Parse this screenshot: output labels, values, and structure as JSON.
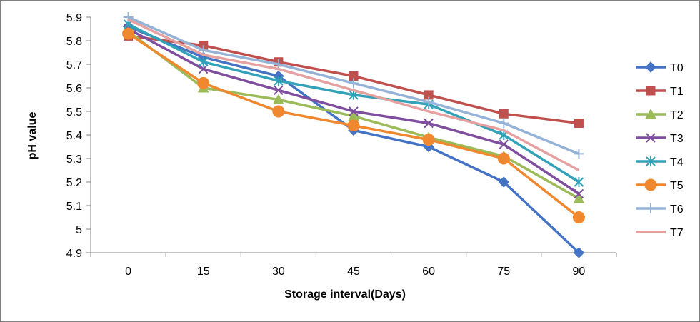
{
  "chart_data": {
    "type": "line",
    "title": "",
    "xlabel": "Storage  interval(Days)",
    "ylabel": "pH value",
    "x": [
      0,
      15,
      30,
      45,
      60,
      75,
      90
    ],
    "x_tick_labels": [
      "0",
      "15",
      "30",
      "45",
      "60",
      "75",
      "90"
    ],
    "ylim": [
      4.9,
      5.9
    ],
    "y_ticks": [
      4.9,
      5.0,
      5.1,
      5.2,
      5.3,
      5.4,
      5.5,
      5.6,
      5.7,
      5.8,
      5.9
    ],
    "y_tick_labels": [
      "4.9",
      "5",
      "5.1",
      "5.2",
      "5.3",
      "5.4",
      "5.5",
      "5.6",
      "5.7",
      "5.8",
      "5.9"
    ],
    "grid": false,
    "legend_position": "right",
    "series": [
      {
        "name": "T0",
        "color": "#4472C4",
        "marker": "diamond",
        "values": [
          5.86,
          5.73,
          5.65,
          5.42,
          5.35,
          5.2,
          4.9
        ]
      },
      {
        "name": "T1",
        "color": "#C0504D",
        "marker": "square",
        "values": [
          5.82,
          5.78,
          5.71,
          5.65,
          5.57,
          5.49,
          5.45
        ]
      },
      {
        "name": "T2",
        "color": "#9BBB59",
        "marker": "triangle",
        "values": [
          5.84,
          5.6,
          5.55,
          5.48,
          5.39,
          5.31,
          5.13
        ]
      },
      {
        "name": "T3",
        "color": "#7F4E9F",
        "marker": "x",
        "values": [
          5.85,
          5.68,
          5.59,
          5.5,
          5.45,
          5.36,
          5.15
        ]
      },
      {
        "name": "T4",
        "color": "#31A2B8",
        "marker": "star",
        "values": [
          5.87,
          5.71,
          5.63,
          5.57,
          5.53,
          5.4,
          5.2
        ]
      },
      {
        "name": "T5",
        "color": "#F08830",
        "marker": "circle",
        "values": [
          5.83,
          5.62,
          5.5,
          5.44,
          5.38,
          5.3,
          5.05
        ]
      },
      {
        "name": "T6",
        "color": "#95B3D7",
        "marker": "plus",
        "values": [
          5.9,
          5.76,
          5.7,
          5.62,
          5.54,
          5.45,
          5.32
        ]
      },
      {
        "name": "T7",
        "color": "#E6A0A0",
        "marker": "none",
        "values": [
          5.89,
          5.74,
          5.68,
          5.59,
          5.5,
          5.42,
          5.25
        ]
      }
    ]
  }
}
